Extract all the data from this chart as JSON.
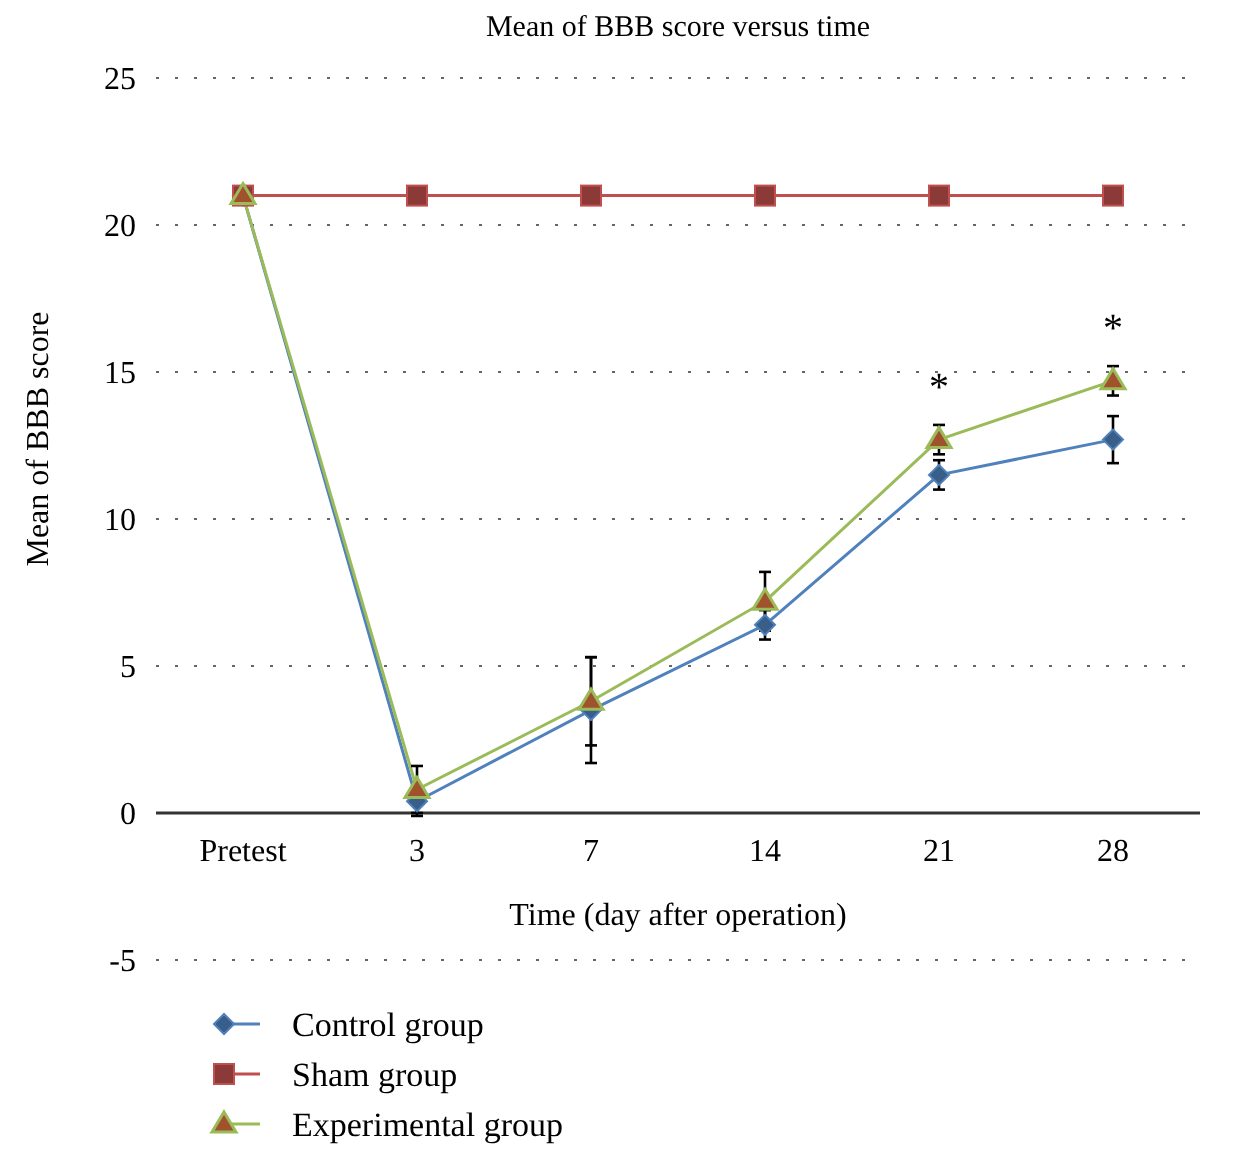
{
  "chart_data": {
    "type": "line",
    "title": "Mean of BBB score versus time",
    "xlabel": "Time (day after operation)",
    "ylabel": "Mean of BBB score",
    "categories": [
      "Pretest",
      "3",
      "7",
      "14",
      "21",
      "28"
    ],
    "series": [
      {
        "name": "Control group",
        "color": "#4f81bd",
        "marker": "diamond",
        "values": [
          21,
          0.4,
          3.5,
          6.4,
          11.5,
          12.7
        ],
        "errors": [
          null,
          0.5,
          1.8,
          0.5,
          0.5,
          0.8
        ]
      },
      {
        "name": "Sham group",
        "color": "#c0504d",
        "marker": "square",
        "values": [
          21,
          21,
          21,
          21,
          21,
          21
        ]
      },
      {
        "name": "Experimental group",
        "color": "#9bbb59",
        "marker": "triangle",
        "values": [
          21,
          0.8,
          3.8,
          7.2,
          12.7,
          14.7
        ],
        "errors": [
          null,
          0.8,
          1.5,
          1.0,
          0.5,
          0.5
        ]
      }
    ],
    "annotations": [
      {
        "text": "*",
        "x": "21",
        "y": 12.7
      },
      {
        "text": "*",
        "x": "28",
        "y": 14.7
      }
    ],
    "ylim": [
      -5,
      25
    ],
    "yticks": [
      -5,
      0,
      5,
      10,
      15,
      20,
      25
    ],
    "grid": "y",
    "legend": "bottom left"
  }
}
